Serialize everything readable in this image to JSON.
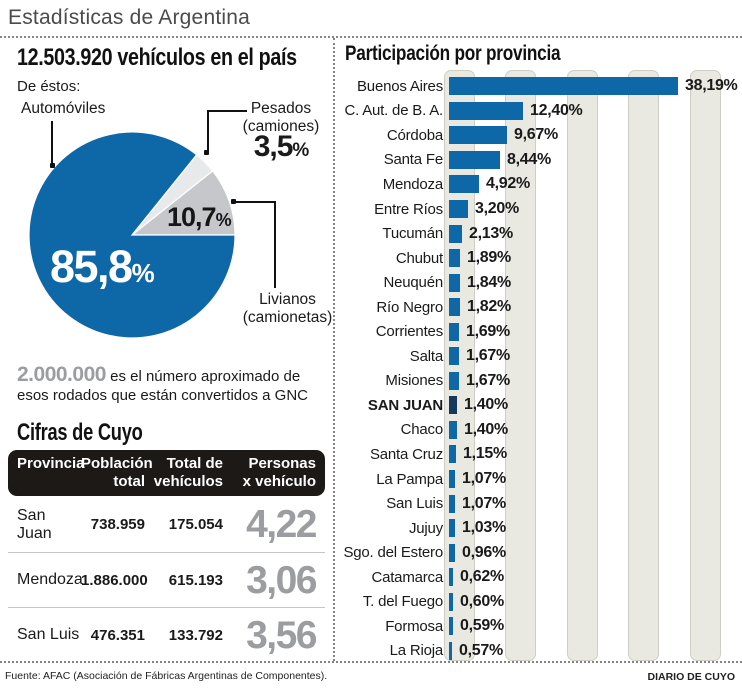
{
  "header": {
    "title": "Estadísticas de Argentina"
  },
  "left": {
    "headline": "12.503.920 vehículos en el país",
    "subtitle": "De éstos:",
    "pie": {
      "automoviles_label": "Automóviles",
      "automoviles_value": "85,8",
      "livianos_value": "10,7",
      "pesados_label_1": "Pesados",
      "pesados_label_2": "(camiones)",
      "pesados_value": "3,5",
      "livianos_label_1": "Livianos",
      "livianos_label_2": "(camionetas)",
      "percent_sign": "%"
    },
    "gnc": {
      "number": "2.000.000",
      "line1": "es el número aproximado de",
      "line2": "esos rodados que están convertidos a GNC"
    },
    "cuyo": {
      "title": "Cifras de Cuyo",
      "columns": [
        {
          "l1": "Provincia",
          "l2": ""
        },
        {
          "l1": "Población",
          "l2": "total"
        },
        {
          "l1": "Total de",
          "l2": "vehículos"
        },
        {
          "l1": "Personas",
          "l2": "x vehículo"
        }
      ],
      "rows": [
        {
          "provincia": "San Juan",
          "poblacion": "738.959",
          "vehiculos": "175.054",
          "personas": "4,22"
        },
        {
          "provincia": "Mendoza",
          "poblacion": "1.886.000",
          "vehiculos": "615.193",
          "personas": "3,06"
        },
        {
          "provincia": "San Luis",
          "poblacion": "476.351",
          "vehiculos": "133.792",
          "personas": "3,56"
        }
      ]
    }
  },
  "right": {
    "title": "Participación por provincia"
  },
  "chart_data": [
    {
      "type": "pie",
      "title": "12.503.920 vehículos en el país",
      "labels": [
        "Automóviles",
        "Livianos (camionetas)",
        "Pesados (camiones)"
      ],
      "values": [
        85.8,
        10.7,
        3.5
      ],
      "value_labels": [
        "85,8%",
        "10,7%",
        "3,5%"
      ],
      "colors": [
        "#0e68a8",
        "#c5c7ca",
        "#e8e9eb"
      ]
    },
    {
      "type": "bar",
      "orientation": "horizontal",
      "title": "Participación por provincia",
      "unit": "%",
      "categories": [
        "Buenos Aires",
        "C. Aut. de B. A.",
        "Córdoba",
        "Santa Fe",
        "Mendoza",
        "Entre Ríos",
        "Tucumán",
        "Chubut",
        "Neuquén",
        "Río Negro",
        "Corrientes",
        "Salta",
        "Misiones",
        "SAN JUAN",
        "Chaco",
        "Santa Cruz",
        "La Pampa",
        "San Luis",
        "Jujuy",
        "Sgo. del Estero",
        "Catamarca",
        "T. del Fuego",
        "Formosa",
        "La Rioja"
      ],
      "values": [
        38.19,
        12.4,
        9.67,
        8.44,
        4.92,
        3.2,
        2.13,
        1.89,
        1.84,
        1.82,
        1.69,
        1.67,
        1.67,
        1.4,
        1.4,
        1.15,
        1.07,
        1.07,
        1.03,
        0.96,
        0.62,
        0.6,
        0.59,
        0.57
      ],
      "value_labels": [
        "38,19%",
        "12,40%",
        "9,67%",
        "8,44%",
        "4,92%",
        "3,20%",
        "2,13%",
        "1,89%",
        "1,84%",
        "1,82%",
        "1,69%",
        "1,67%",
        "1,67%",
        "1,40%",
        "1,40%",
        "1,15%",
        "1,07%",
        "1,07%",
        "1,03%",
        "0,96%",
        "0,62%",
        "0,60%",
        "0,59%",
        "0,57%"
      ],
      "highlight_index": 13,
      "highlight_category": "SAN JUAN",
      "bar_color": "#0e68a8",
      "highlight_color": "#15395c",
      "xlim": [
        0,
        48
      ],
      "grid": "vertical-bands-every-10pct"
    }
  ],
  "footer": {
    "source": "Fuente: AFAC (Asociación de Fábricas Argentinas de Componentes).",
    "credit": "DIARIO DE CUYO"
  }
}
